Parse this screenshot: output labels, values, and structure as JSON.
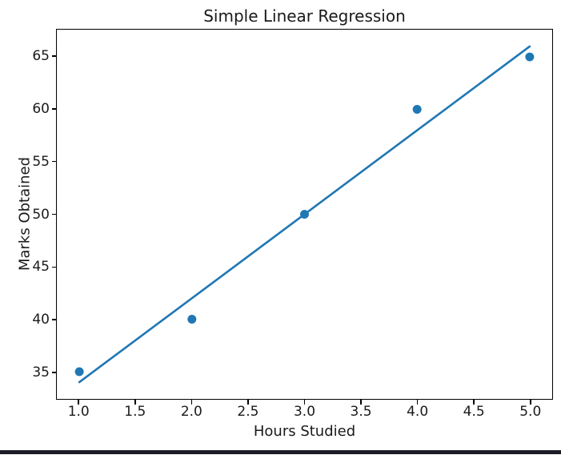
{
  "chart_data": {
    "type": "scatter",
    "title": "Simple Linear Regression",
    "xlabel": "Hours Studied",
    "ylabel": "Marks Obtained",
    "xlim": [
      0.8,
      5.2
    ],
    "ylim": [
      32.4,
      67.6
    ],
    "xticks": [
      1.0,
      1.5,
      2.0,
      2.5,
      3.0,
      3.5,
      4.0,
      4.5,
      5.0
    ],
    "xtick_labels": [
      "1.0",
      "1.5",
      "2.0",
      "2.5",
      "3.0",
      "3.5",
      "4.0",
      "4.5",
      "5.0"
    ],
    "yticks": [
      35,
      40,
      45,
      50,
      55,
      60,
      65
    ],
    "ytick_labels": [
      "35",
      "40",
      "45",
      "50",
      "55",
      "60",
      "65"
    ],
    "grid": false,
    "legend": null,
    "axis_color": "#000000",
    "series": [
      {
        "name": "data-points",
        "type": "scatter",
        "color": "#1f77b4",
        "marker_size": 11,
        "x": [
          1,
          2,
          3,
          4,
          5
        ],
        "y": [
          35,
          40,
          50,
          60,
          65
        ]
      },
      {
        "name": "regression-line",
        "type": "line",
        "color": "#1f77b4",
        "line_width": 2.6,
        "x": [
          1,
          5
        ],
        "y": [
          34,
          66
        ]
      }
    ]
  },
  "window": {
    "bottom_edge_color": "#1c1c26"
  }
}
